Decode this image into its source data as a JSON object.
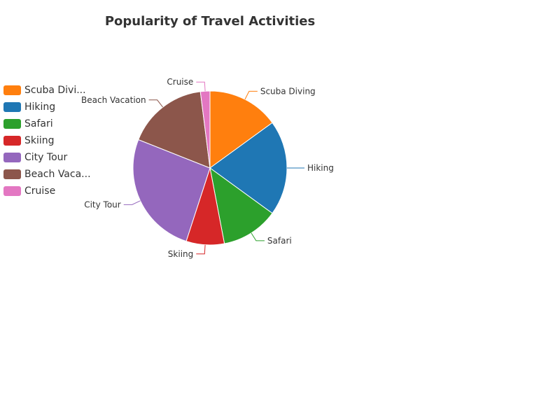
{
  "chart_data": {
    "type": "pie",
    "title": "Popularity of Travel Activities",
    "categories": [
      "Scuba Diving",
      "Hiking",
      "Safari",
      "Skiing",
      "City Tour",
      "Beach Vacation",
      "Cruise"
    ],
    "values": [
      15,
      20,
      12,
      8,
      26,
      17,
      2
    ],
    "legend_labels": [
      "Scuba Divi...",
      "Hiking",
      "Safari",
      "Skiing",
      "City Tour",
      "Beach Vaca...",
      "Cruise"
    ],
    "colors": [
      "#ff7f0e",
      "#1f77b4",
      "#2ca02c",
      "#d62728",
      "#9467bd",
      "#8c564b",
      "#e377c2"
    ],
    "legend_position": "left"
  }
}
